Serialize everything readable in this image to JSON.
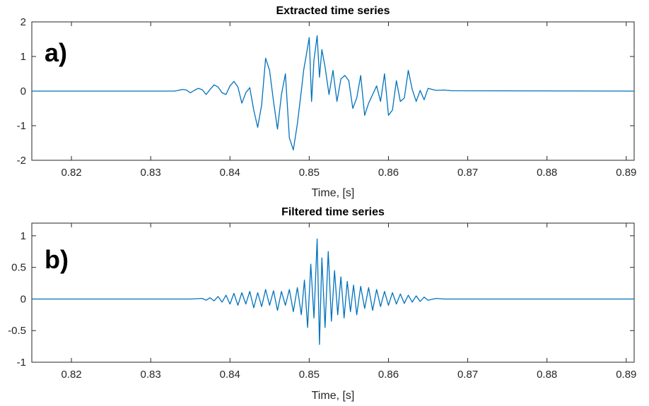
{
  "chart_data": [
    {
      "type": "line",
      "panel_label": "a)",
      "title": "Extracted time series",
      "xlabel": "Time, [s]",
      "ylabel": "",
      "xlim": [
        0.815,
        0.891
      ],
      "ylim": [
        -2,
        2
      ],
      "xticks": [
        "0.82",
        "0.83",
        "0.84",
        "0.85",
        "0.86",
        "0.87",
        "0.88",
        "0.89"
      ],
      "yticks": [
        "-2",
        "-1",
        "0",
        "1",
        "2"
      ],
      "grid": false,
      "line_color": "#0072BD",
      "series": [
        {
          "x": [
            0.815,
            0.833,
            0.8335,
            0.834,
            0.8345,
            0.835,
            0.8355,
            0.836,
            0.8365,
            0.837,
            0.8375,
            0.838,
            0.8385,
            0.839,
            0.8395,
            0.84,
            0.8405,
            0.841,
            0.8415,
            0.842,
            0.8425,
            0.843,
            0.8435,
            0.844,
            0.8445,
            0.845,
            0.8455,
            0.846,
            0.8465,
            0.847,
            0.8475,
            0.848,
            0.8485,
            0.849,
            0.8493,
            0.8496,
            0.85,
            0.8503,
            0.8506,
            0.851,
            0.8513,
            0.8516,
            0.852,
            0.8525,
            0.853,
            0.8535,
            0.854,
            0.8545,
            0.855,
            0.8555,
            0.856,
            0.8565,
            0.857,
            0.8575,
            0.858,
            0.8585,
            0.859,
            0.8595,
            0.86,
            0.8605,
            0.861,
            0.8615,
            0.862,
            0.8625,
            0.863,
            0.8635,
            0.864,
            0.8645,
            0.865,
            0.866,
            0.867,
            0.868,
            0.891
          ],
          "y": [
            0,
            0,
            0.02,
            0.05,
            0.03,
            -0.05,
            0.02,
            0.08,
            0.04,
            -0.1,
            0.05,
            0.18,
            0.12,
            -0.05,
            -0.1,
            0.15,
            0.28,
            0.12,
            -0.35,
            -0.05,
            0.1,
            -0.55,
            -1.05,
            -0.4,
            0.95,
            0.6,
            -0.3,
            -1.1,
            -0.1,
            0.5,
            -1.35,
            -1.7,
            -0.95,
            0.0,
            0.6,
            1.0,
            1.55,
            -0.3,
            0.9,
            1.6,
            0.4,
            1.2,
            0.7,
            -0.1,
            0.6,
            -0.3,
            0.35,
            0.45,
            0.3,
            -0.5,
            -0.2,
            0.45,
            -0.7,
            -0.35,
            -0.1,
            0.15,
            -0.3,
            0.5,
            -0.7,
            -0.55,
            0.3,
            -0.3,
            -0.2,
            0.6,
            0.05,
            -0.3,
            0.02,
            -0.25,
            0.08,
            0.02,
            0.03,
            0.01,
            0
          ]
        }
      ]
    },
    {
      "type": "line",
      "panel_label": "b)",
      "title": "Filtered time series",
      "xlabel": "Time, [s]",
      "ylabel": "",
      "xlim": [
        0.815,
        0.891
      ],
      "ylim": [
        -1,
        1.2
      ],
      "xticks": [
        "0.82",
        "0.83",
        "0.84",
        "0.85",
        "0.86",
        "0.87",
        "0.88",
        "0.89"
      ],
      "yticks": [
        "-1",
        "-0.5",
        "0",
        "0.5",
        "1"
      ],
      "grid": false,
      "line_color": "#0072BD",
      "series": [
        {
          "x": [
            0.815,
            0.835,
            0.8365,
            0.837,
            0.8375,
            0.838,
            0.8385,
            0.839,
            0.8395,
            0.84,
            0.8405,
            0.841,
            0.8415,
            0.842,
            0.8425,
            0.843,
            0.8435,
            0.844,
            0.8445,
            0.845,
            0.8455,
            0.846,
            0.8465,
            0.847,
            0.8475,
            0.848,
            0.8485,
            0.849,
            0.8494,
            0.8498,
            0.8502,
            0.8506,
            0.851,
            0.8513,
            0.8516,
            0.852,
            0.8524,
            0.8528,
            0.8532,
            0.8536,
            0.854,
            0.8544,
            0.8548,
            0.8552,
            0.8556,
            0.856,
            0.8565,
            0.857,
            0.8575,
            0.858,
            0.8585,
            0.859,
            0.8595,
            0.86,
            0.8605,
            0.861,
            0.8615,
            0.862,
            0.8625,
            0.863,
            0.8635,
            0.864,
            0.8645,
            0.865,
            0.866,
            0.867,
            0.891
          ],
          "y": [
            0,
            0,
            0.01,
            -0.02,
            0.02,
            -0.03,
            0.04,
            -0.05,
            0.06,
            -0.08,
            0.09,
            -0.1,
            0.1,
            -0.08,
            0.12,
            -0.14,
            0.1,
            -0.12,
            0.15,
            -0.1,
            0.13,
            -0.18,
            0.12,
            -0.1,
            0.15,
            -0.2,
            0.18,
            -0.25,
            0.3,
            -0.45,
            0.55,
            -0.3,
            0.95,
            -0.72,
            0.65,
            -0.45,
            0.75,
            -0.35,
            0.45,
            -0.25,
            0.35,
            -0.3,
            0.28,
            -0.2,
            0.22,
            -0.25,
            0.2,
            -0.15,
            0.18,
            -0.18,
            0.15,
            -0.12,
            0.12,
            -0.1,
            0.1,
            -0.08,
            0.08,
            -0.07,
            0.06,
            -0.05,
            0.05,
            -0.04,
            0.03,
            -0.02,
            0.01,
            0,
            0
          ]
        }
      ]
    }
  ]
}
